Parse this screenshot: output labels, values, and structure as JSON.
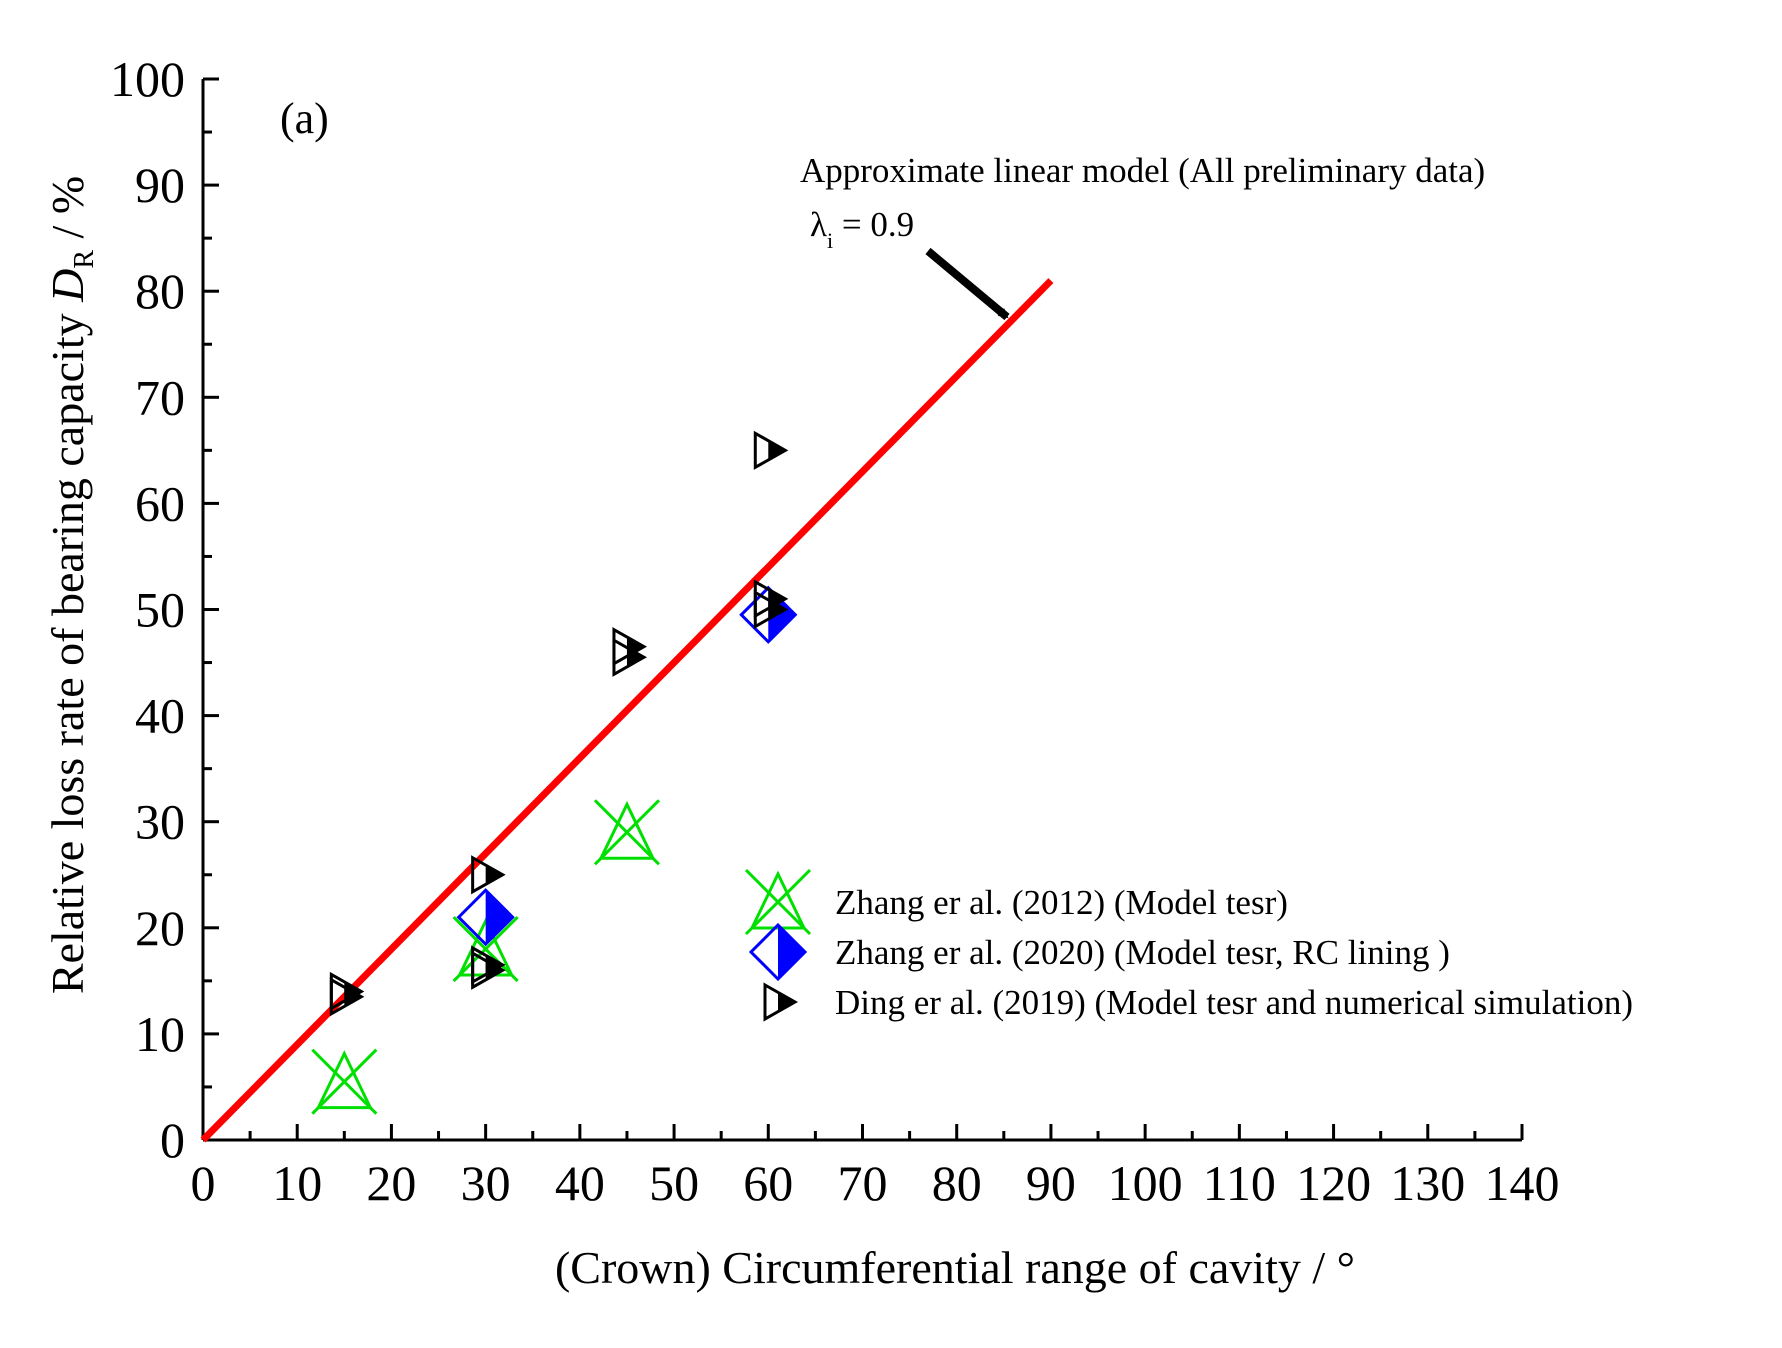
{
  "chart_data": {
    "type": "scatter",
    "panel_label": "(a)",
    "xlabel": "(Crown) Circumferential range of  cavity / °",
    "ylabel": {
      "main": "Relative loss rate of bearing capacity ",
      "var": "D",
      "sub": "R",
      "unit": " / %"
    },
    "xlim": [
      0,
      140
    ],
    "ylim": [
      0,
      100
    ],
    "xticks": [
      "0",
      "10",
      "20",
      "30",
      "40",
      "50",
      "60",
      "70",
      "80",
      "90",
      "100",
      "110",
      "120",
      "130",
      "140"
    ],
    "yticks": [
      "0",
      "10",
      "20",
      "30",
      "40",
      "50",
      "60",
      "70",
      "80",
      "90",
      "100"
    ],
    "grid": false,
    "legend_position": "lower-right",
    "fit_line": {
      "x": [
        0,
        90
      ],
      "y": [
        0,
        81
      ],
      "color": "#ff0000"
    },
    "annotation": {
      "line1": "Approximate linear model (All preliminary data)",
      "lambda": "λ",
      "lambda_sub": "i",
      "lambda_value": " = 0.9"
    },
    "series": [
      {
        "name": "Zhang er al. (2012) (Model tesr)",
        "marker": "star-x",
        "color": "#00e000",
        "points": [
          [
            15,
            5.5
          ],
          [
            30,
            18
          ],
          [
            45,
            29
          ]
        ]
      },
      {
        "name": "Zhang er al. (2020) (Model tesr, RC lining )",
        "marker": "half-diamond",
        "color": "#0000ff",
        "points": [
          [
            30,
            21
          ],
          [
            60,
            49.5
          ]
        ]
      },
      {
        "name": "Ding er al. (2019) (Model tesr and numerical simulation)",
        "marker": "half-triangle",
        "color": "#000000",
        "points": [
          [
            15,
            14
          ],
          [
            15,
            13.5
          ],
          [
            30,
            25
          ],
          [
            30,
            16.5
          ],
          [
            30,
            16
          ],
          [
            45,
            46.5
          ],
          [
            45,
            45.5
          ],
          [
            60,
            65
          ],
          [
            60,
            51
          ],
          [
            60,
            50
          ]
        ]
      }
    ]
  }
}
